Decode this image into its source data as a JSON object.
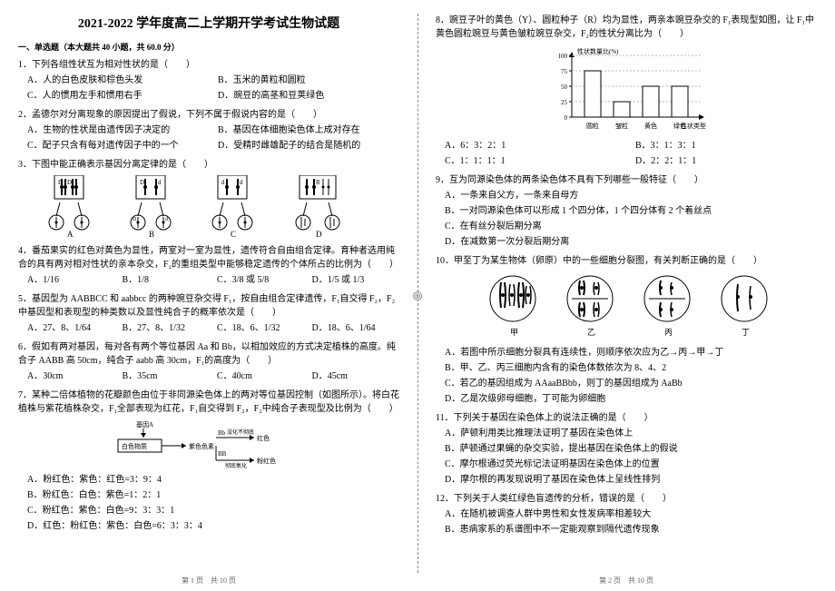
{
  "title": "2021-2022 学年度高二上学期开学考试生物试题",
  "section1": "一、单选题（本大题共 40 小题，共 60.0 分）",
  "q1": {
    "stem": "1．下列各组性状互为相对性状的是（　　）",
    "A": "A．人的白色皮肤和棕色头发",
    "B": "B．玉米的黄粒和圆粒",
    "C": "C．人的惯用左手和惯用右手",
    "D": "D．豌豆的高茎和豆荚绿色"
  },
  "q2": {
    "stem": "2．孟德尔对分离现象的原因提出了假说，下列不属于假说内容的是（　　）",
    "A": "A．生物的性状是由遗传因子决定的",
    "B": "B．基因在体细胞染色体上成对存在",
    "C": "C．配子只含有每对遗传因子中的一个",
    "D": "D．受精时雌雄配子的结合是随机的"
  },
  "q3": {
    "stem": "3．下图中能正确表示基因分离定律的是（　　）",
    "labels": {
      "A": "A",
      "B": "B",
      "C": "C",
      "D": "D"
    },
    "alleles": {
      "D": "D",
      "d": "d",
      "R": "R"
    }
  },
  "q4": {
    "stem": "4．番茄果实的红色对黄色为显性，两室对一室为显性，遗传符合自由组合定律。育种者选用纯合的具有两对相对性状的亲本杂交，F₂的重组类型中能够稳定遗传的个体所占的比例为（　　）",
    "A": "A．1/16",
    "B": "B．1/8",
    "C": "C．3/8 或 5/8",
    "D": "D．1/5 或 1/3"
  },
  "q5": {
    "stem": "5．基因型为 AABBCC 和 aabbcc 的两种豌豆杂交得 F₁，按自由组合定律遗传，F₁自交得 F₂，F₂中基因型和表现型的种类数以及显性纯合子的概率依次是（　　）",
    "A": "A．27、8、1/64",
    "B": "B．27、8、1/32",
    "C": "C．18、6、1/32",
    "D": "D．18、6、1/64"
  },
  "q6": {
    "stem": "6．假如有两对基因，每对各有两个等位基因 Aa 和 Bb，以相加效应的方式决定植株的高度。纯合子 AABB 高 50cm，纯合子 aabb 高 30cm，F₁的高度为（　　）",
    "A": "A．30cm",
    "B": "B．35cm",
    "C": "C．40cm",
    "D": "D．45cm"
  },
  "q7": {
    "stem": "7．某种二倍体植物的花瓣颜色由位于非同源染色体上的两对等位基因控制（如图所示）。将白花植株与紫花植株杂交，F₁全部表现为红花，F₁自交得到 F₂，F₂中纯合子表现型及比例为（　　）",
    "fig": {
      "geneA": "基因A",
      "white": "白色物质",
      "Bb_yes": "Bb",
      "arrow_yes": "没化不彻底",
      "red": "红色",
      "purple": "紫色色素",
      "BB": "BB",
      "arrow_full": "彻底氧化",
      "pink": "粉红色"
    },
    "A": "A．粉红色：紫色：红色=3：9：4",
    "B": "B．粉红色：白色：紫色=1：2：1",
    "C": "C．粉红色：紫色：白色=9：3：3：1",
    "D": "D．红色：粉红色：紫色：白色=6：3：3：4"
  },
  "q8": {
    "stem": "8．豌豆子叶的黄色（Y）、圆粒种子（R）均为显性，两亲本豌豆杂交的 F₁表现型如图，让 F₁中黄色圆粒豌豆与黄色皱粒豌豆杂交，F₂的性状分离比为（　　）",
    "chart": {
      "ylabel": "性状数量比(%)",
      "categories": [
        "圆粒",
        "皱粒",
        "黄色",
        "绿色",
        "性状类型"
      ],
      "values": [
        75,
        25,
        50,
        50
      ],
      "ylim": [
        0,
        100
      ],
      "ytick": 25,
      "bar_fill": "#ffffff",
      "bar_stroke": "#000",
      "bg": "#fff"
    },
    "A": "A．6：3：2：1",
    "B": "B．3：1：3：1",
    "C": "C．1：1：1：1",
    "D": "D．2：2：1：1"
  },
  "q9": {
    "stem": "9．互为同源染色体的两条染色体不具有下列哪些一般特征（　　）",
    "A": "A．一条来自父方，一条来自母方",
    "B": "B．一对同源染色体可以形成 1 个四分体，1 个四分体有 2 个着丝点",
    "C": "C．在有丝分裂后期分离",
    "D": "D．在减数第一次分裂后期分离"
  },
  "q10": {
    "stem": "10．甲至丁为某生物体（卵原）中的一些细胞分裂图，有关判断正确的是（　　）",
    "labels": {
      "a": "甲",
      "b": "乙",
      "c": "丙",
      "d": "丁"
    },
    "A": "A．若图中所示细胞分裂具有连续性，则顺序依次应为乙→丙→甲→丁",
    "B": "B．甲、乙、丙三细胞内含有的染色体数依次为 8、4、2",
    "C": "C．若乙的基因组成为 AAaaBBbb，则丁的基因组成为 AaBb",
    "D": "D．乙是次级卵母细胞，丁可能为卵细胞"
  },
  "q11": {
    "stem": "11．下列关于基因在染色体上的说法正确的是（　　）",
    "A": "A．萨顿利用类比推理法证明了基因在染色体上",
    "B": "B．萨顿通过果蝇的杂交实验，提出基因在染色体上的假说",
    "C": "C．摩尔根通过荧光标记法证明基因在染色体上的位置",
    "D": "D．摩尔根的再发现说明了基因在染色体上呈线性排列"
  },
  "q12": {
    "stem": "12．下列关于人类红绿色盲遗传的分析，错误的是（　　）",
    "A": "A．在随机被调查人群中男性和女性发病率相差较大",
    "B": "B．患病家系的系谱图中不一定能观察到隔代遗传现象"
  },
  "foot_left": "第 1 页　共 10 页",
  "foot_right": "第 2 页　共 10 页"
}
